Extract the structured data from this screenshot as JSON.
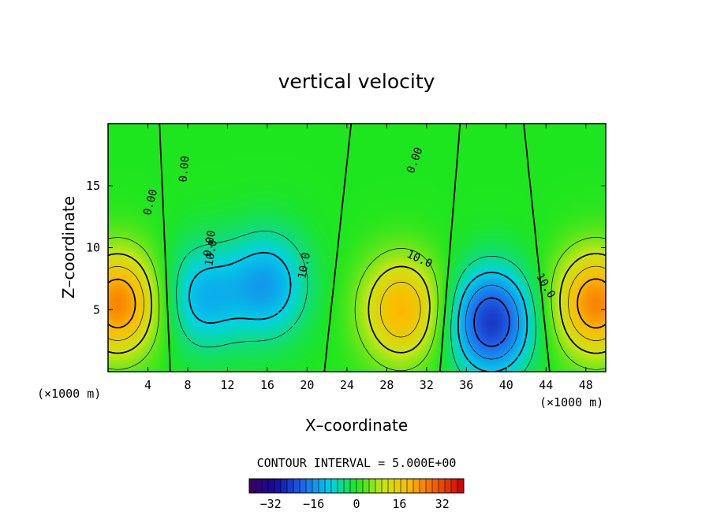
{
  "chart_data": {
    "type": "heatmap",
    "title": "vertical velocity",
    "xlabel": "X–coordinate",
    "ylabel": "Z–coordinate",
    "x_unit_left": "(×1000 m)",
    "x_unit_right": "(×1000 m)",
    "xlim": [
      0,
      50
    ],
    "ylim": [
      0,
      20
    ],
    "x_ticks": [
      4,
      8,
      12,
      16,
      20,
      24,
      28,
      32,
      36,
      40,
      44,
      48
    ],
    "y_ticks": [
      5,
      10,
      15
    ],
    "contour_interval_text": "CONTOUR INTERVAL = 5.000E+00",
    "contour_labels": [
      "0.00",
      "0.00",
      "0.00",
      "0.00",
      "10.0",
      "10.0",
      "10.0",
      "10.0"
    ],
    "colorbar": {
      "range": [
        -40,
        40
      ],
      "tick_values": [
        -32,
        -16,
        0,
        16,
        32
      ],
      "tick_labels": [
        "−32",
        "−16",
        "0",
        "16",
        "32"
      ]
    },
    "extrema": [
      {
        "kind": "updraft",
        "x": 1,
        "z": 5.5,
        "value": 25
      },
      {
        "kind": "downdraft",
        "x": 9.5,
        "z": 6,
        "value": -12
      },
      {
        "kind": "downdraft",
        "x": 16,
        "z": 7,
        "value": -14
      },
      {
        "kind": "updraft",
        "x": 29.5,
        "z": 5,
        "value": 20
      },
      {
        "kind": "downdraft",
        "x": 38.5,
        "z": 4,
        "value": -25
      },
      {
        "kind": "updraft",
        "x": 49,
        "z": 5.5,
        "value": 25
      }
    ]
  }
}
